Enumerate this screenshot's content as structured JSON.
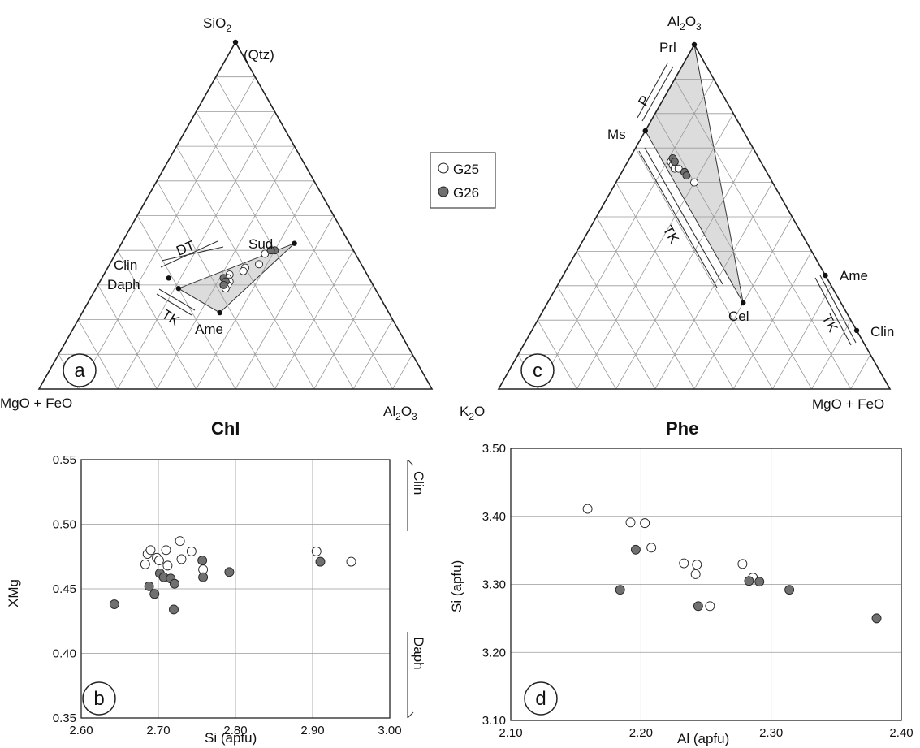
{
  "legend": {
    "g25_label": "G25",
    "g26_label": "G26",
    "g25_color": "#ffffff",
    "g26_color": "#707070"
  },
  "colors": {
    "field_fill": "#dcdcdc",
    "grid": "#9a9a9a",
    "axis": "#222222"
  },
  "panels": {
    "a": {
      "label": "a",
      "title": "Chl",
      "apex_top": "SiO2",
      "apex_top_note": "(Qtz)",
      "apex_left": "MgO + FeO",
      "apex_right": "Al2O3",
      "points": {
        "Sud": "Sud",
        "Clin": "Clin",
        "Daph": "Daph",
        "Ame": "Ame"
      },
      "trends": {
        "DT": "DT",
        "TK": "TK"
      }
    },
    "c": {
      "label": "c",
      "title": "Phe",
      "apex_top": "Al2O3",
      "apex_left": "K2O",
      "apex_right": "MgO + FeO",
      "points": {
        "Prl": "Prl",
        "Ms": "Ms",
        "Cel": "Cel",
        "Ame": "Ame",
        "Clin": "Clin"
      },
      "trends": {
        "P": "P",
        "TK1": "TK",
        "TK2": "TK"
      }
    },
    "b": {
      "label": "b",
      "side_top": "Clin",
      "side_bottom": "Daph"
    },
    "d": {
      "label": "d"
    }
  },
  "chart_data": [
    {
      "type": "ternary",
      "panel": "a",
      "apices": [
        "SiO2",
        "MgO + FeO",
        "Al2O3"
      ],
      "reference_points": {
        "Qtz": [
          1.0,
          0.0,
          0.0
        ],
        "Sud": [
          0.42,
          0.14,
          0.44
        ],
        "Clin": [
          0.32,
          0.51,
          0.17
        ],
        "Daph": [
          0.29,
          0.5,
          0.21
        ],
        "Ame": [
          0.22,
          0.43,
          0.35
        ]
      },
      "series": [
        {
          "name": "G25",
          "points": [
            [
              0.39,
              0.23,
              0.38
            ],
            [
              0.36,
              0.26,
              0.38
            ],
            [
              0.35,
              0.3,
              0.35
            ],
            [
              0.34,
              0.31,
              0.35
            ],
            [
              0.33,
              0.35,
              0.32
            ],
            [
              0.32,
              0.36,
              0.32
            ],
            [
              0.31,
              0.36,
              0.33
            ],
            [
              0.3,
              0.37,
              0.33
            ],
            [
              0.3,
              0.38,
              0.32
            ],
            [
              0.29,
              0.38,
              0.33
            ]
          ]
        },
        {
          "name": "G26",
          "points": [
            [
              0.4,
              0.2,
              0.4
            ],
            [
              0.4,
              0.21,
              0.39
            ],
            [
              0.32,
              0.37,
              0.31
            ],
            [
              0.31,
              0.37,
              0.32
            ],
            [
              0.3,
              0.38,
              0.32
            ]
          ]
        }
      ]
    },
    {
      "type": "ternary",
      "panel": "c",
      "apices": [
        "Al2O3",
        "K2O",
        "MgO + FeO"
      ],
      "reference_points": {
        "Prl": [
          1.0,
          0.0,
          0.0
        ],
        "Ms": [
          0.75,
          0.25,
          0.0
        ],
        "Cel": [
          0.25,
          0.25,
          0.5
        ],
        "Ame": [
          0.33,
          0.0,
          0.67
        ],
        "Clin": [
          0.17,
          0.0,
          0.83
        ]
      },
      "series": [
        {
          "name": "G25",
          "points": [
            [
              0.66,
              0.23,
              0.11
            ],
            [
              0.65,
              0.23,
              0.12
            ],
            [
              0.66,
              0.22,
              0.12
            ],
            [
              0.64,
              0.23,
              0.13
            ],
            [
              0.64,
              0.22,
              0.14
            ],
            [
              0.63,
              0.21,
              0.16
            ],
            [
              0.6,
              0.2,
              0.2
            ]
          ]
        },
        {
          "name": "G26",
          "points": [
            [
              0.67,
              0.22,
              0.11
            ],
            [
              0.66,
              0.22,
              0.12
            ],
            [
              0.63,
              0.21,
              0.16
            ],
            [
              0.62,
              0.21,
              0.17
            ]
          ]
        }
      ]
    },
    {
      "type": "scatter",
      "panel": "b",
      "xlabel": "Si (apfu)",
      "ylabel": "XMg",
      "xlim": [
        2.6,
        3.0
      ],
      "ylim": [
        0.35,
        0.55
      ],
      "xticks": [
        "2.60",
        "2.70",
        "2.80",
        "2.90",
        "3.00"
      ],
      "yticks": [
        "0.35",
        "0.40",
        "0.45",
        "0.50",
        "0.55"
      ],
      "series": [
        {
          "name": "G25",
          "points": [
            [
              2.686,
              0.477
            ],
            [
              2.69,
              0.48
            ],
            [
              2.683,
              0.469
            ],
            [
              2.698,
              0.474
            ],
            [
              2.701,
              0.472
            ],
            [
              2.71,
              0.48
            ],
            [
              2.712,
              0.468
            ],
            [
              2.728,
              0.487
            ],
            [
              2.73,
              0.473
            ],
            [
              2.743,
              0.479
            ],
            [
              2.758,
              0.465
            ],
            [
              2.905,
              0.479
            ],
            [
              2.95,
              0.471
            ]
          ]
        },
        {
          "name": "G26",
          "points": [
            [
              2.643,
              0.438
            ],
            [
              2.688,
              0.452
            ],
            [
              2.695,
              0.446
            ],
            [
              2.702,
              0.462
            ],
            [
              2.707,
              0.459
            ],
            [
              2.716,
              0.458
            ],
            [
              2.721,
              0.454
            ],
            [
              2.72,
              0.434
            ],
            [
              2.757,
              0.472
            ],
            [
              2.758,
              0.459
            ],
            [
              2.792,
              0.463
            ],
            [
              2.91,
              0.471
            ]
          ]
        }
      ]
    },
    {
      "type": "scatter",
      "panel": "d",
      "xlabel": "Al (apfu)",
      "ylabel": "Si (apfu)",
      "xlim": [
        2.1,
        2.4
      ],
      "ylim": [
        3.1,
        3.5
      ],
      "xticks": [
        "2.10",
        "2.20",
        "2.30",
        "2.40"
      ],
      "yticks": [
        "3.10",
        "3.20",
        "3.30",
        "3.40",
        "3.50"
      ],
      "series": [
        {
          "name": "G25",
          "points": [
            [
              2.159,
              3.411
            ],
            [
              2.192,
              3.391
            ],
            [
              2.203,
              3.39
            ],
            [
              2.208,
              3.354
            ],
            [
              2.233,
              3.331
            ],
            [
              2.243,
              3.329
            ],
            [
              2.242,
              3.315
            ],
            [
              2.253,
              3.268
            ],
            [
              2.278,
              3.33
            ],
            [
              2.286,
              3.31
            ]
          ]
        },
        {
          "name": "G26",
          "points": [
            [
              2.196,
              3.351
            ],
            [
              2.184,
              3.292
            ],
            [
              2.244,
              3.268
            ],
            [
              2.283,
              3.305
            ],
            [
              2.291,
              3.304
            ],
            [
              2.314,
              3.292
            ],
            [
              2.381,
              3.25
            ]
          ]
        }
      ]
    }
  ]
}
